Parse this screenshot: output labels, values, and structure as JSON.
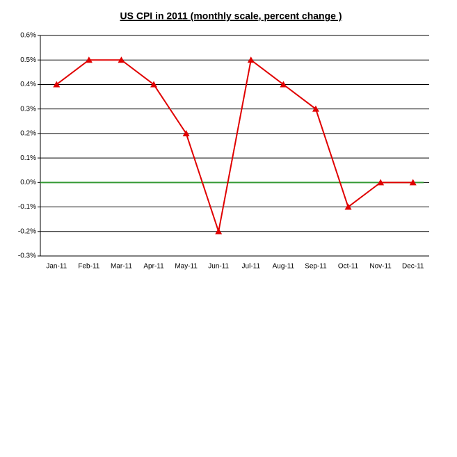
{
  "chart_data": {
    "type": "line",
    "title": "US CPI in 2011 (monthly scale, percent change )",
    "categories": [
      "Jan-11",
      "Feb-11",
      "Mar-11",
      "Apr-11",
      "May-11",
      "Jun-11",
      "Jul-11",
      "Aug-11",
      "Sep-11",
      "Oct-11",
      "Nov-11",
      "Dec-11"
    ],
    "series": [
      {
        "name": "US CPI",
        "color": "#e00000",
        "values": [
          0.4,
          0.5,
          0.5,
          0.4,
          0.2,
          -0.2,
          0.5,
          0.4,
          0.3,
          -0.1,
          0,
          0
        ]
      }
    ],
    "reference_line": {
      "value": 0,
      "color": "#339933"
    },
    "ylim": [
      -0.3,
      0.6
    ],
    "yticks": [
      {
        "value": -0.3,
        "label": "-0.3%"
      },
      {
        "value": -0.2,
        "label": "-0.2%"
      },
      {
        "value": -0.1,
        "label": "-0.1%"
      },
      {
        "value": 0,
        "label": "0.0%"
      },
      {
        "value": 0.1,
        "label": "0.1%"
      },
      {
        "value": 0.2,
        "label": "0.2%"
      },
      {
        "value": 0.3,
        "label": "0.3%"
      },
      {
        "value": 0.4,
        "label": "0.4%"
      },
      {
        "value": 0.5,
        "label": "0.5%"
      },
      {
        "value": 0.6,
        "label": "0.6%"
      }
    ],
    "grid": true
  }
}
